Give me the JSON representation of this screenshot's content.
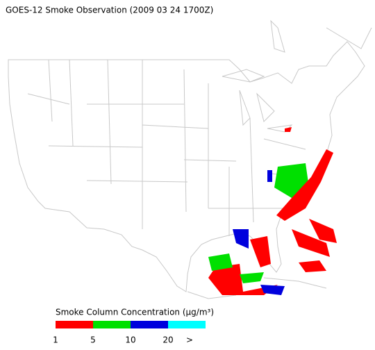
{
  "header": {
    "title": "GOES-12 Smoke Observation (2009 03 24  1700Z)"
  },
  "legend": {
    "title": "Smoke Column Concentration (μg/m³)",
    "colors": [
      "#ff0000",
      "#00e000",
      "#0000dd",
      "#00ffff"
    ],
    "ticks": [
      1,
      5,
      10,
      20
    ],
    "overflow_label": ">"
  }
}
